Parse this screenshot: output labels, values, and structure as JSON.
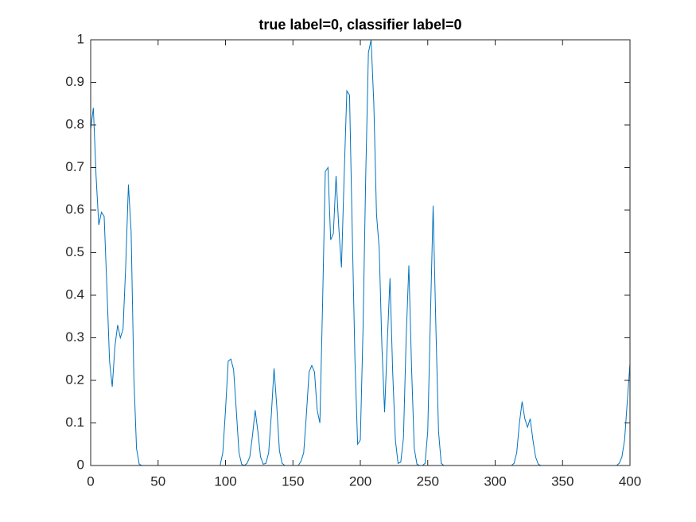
{
  "chart_data": {
    "type": "line",
    "title": "true label=0, classifier label=0",
    "x": [
      0,
      2,
      4,
      6,
      8,
      10,
      12,
      14,
      16,
      18,
      20,
      22,
      24,
      26,
      28,
      30,
      32,
      34,
      36,
      38,
      96,
      98,
      100,
      102,
      104,
      106,
      108,
      110,
      112,
      114,
      116,
      118,
      120,
      122,
      124,
      126,
      128,
      130,
      132,
      134,
      136,
      138,
      140,
      142,
      144,
      154,
      156,
      158,
      160,
      162,
      164,
      166,
      168,
      170,
      172,
      174,
      176,
      178,
      180,
      182,
      184,
      186,
      188,
      190,
      192,
      194,
      196,
      198,
      200,
      202,
      204,
      206,
      208,
      210,
      212,
      214,
      216,
      218,
      220,
      222,
      224,
      226,
      228,
      230,
      232,
      234,
      236,
      238,
      240,
      242,
      244,
      246,
      248,
      250,
      252,
      254,
      256,
      258,
      260,
      262,
      312,
      314,
      316,
      318,
      320,
      322,
      324,
      326,
      328,
      330,
      332,
      334,
      390,
      392,
      394,
      396,
      398,
      400
    ],
    "series": [
      {
        "color": "#0072bd",
        "values": [
          0.79,
          0.84,
          0.68,
          0.565,
          0.595,
          0.585,
          0.42,
          0.245,
          0.185,
          0.28,
          0.33,
          0.3,
          0.32,
          0.47,
          0.66,
          0.55,
          0.21,
          0.04,
          0.003,
          0,
          0,
          0.03,
          0.13,
          0.245,
          0.25,
          0.225,
          0.13,
          0.03,
          0.003,
          0,
          0.005,
          0.02,
          0.07,
          0.13,
          0.08,
          0.02,
          0.003,
          0.005,
          0.03,
          0.12,
          0.228,
          0.14,
          0.035,
          0.005,
          0,
          0,
          0.01,
          0.03,
          0.12,
          0.22,
          0.235,
          0.22,
          0.13,
          0.1,
          0.38,
          0.69,
          0.7,
          0.53,
          0.545,
          0.68,
          0.56,
          0.465,
          0.68,
          0.88,
          0.87,
          0.55,
          0.25,
          0.05,
          0.06,
          0.32,
          0.68,
          0.97,
          1.0,
          0.85,
          0.59,
          0.51,
          0.28,
          0.125,
          0.29,
          0.44,
          0.22,
          0.06,
          0.005,
          0.008,
          0.065,
          0.3,
          0.47,
          0.23,
          0.04,
          0.003,
          0,
          0,
          0.005,
          0.08,
          0.35,
          0.61,
          0.33,
          0.08,
          0.005,
          0,
          0,
          0.005,
          0.03,
          0.1,
          0.15,
          0.11,
          0.09,
          0.11,
          0.06,
          0.02,
          0.003,
          0,
          0,
          0.005,
          0.02,
          0.06,
          0.15,
          0.24
        ]
      }
    ],
    "xlim": [
      0,
      400
    ],
    "xticks": [
      0,
      50,
      100,
      150,
      200,
      250,
      300,
      350,
      400
    ],
    "ylim": [
      0,
      1
    ],
    "yticks": [
      0,
      0.1,
      0.2,
      0.3,
      0.4,
      0.5,
      0.6,
      0.7,
      0.8,
      0.9,
      1
    ]
  }
}
